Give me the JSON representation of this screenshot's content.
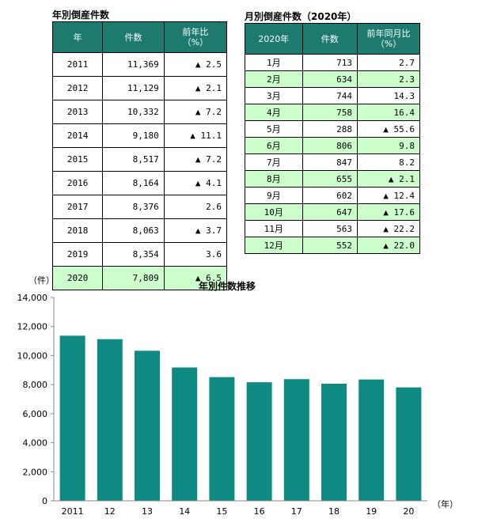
{
  "annual_table": {
    "title": "年別倒産件数",
    "headers": [
      "年",
      "件数",
      "前年比\n（%）"
    ],
    "rows": [
      {
        "year": "2011",
        "count": "11,369",
        "ratio": "▲ 2.5",
        "highlight": false
      },
      {
        "year": "2012",
        "count": "11,129",
        "ratio": "▲ 2.1",
        "highlight": false
      },
      {
        "year": "2013",
        "count": "10,332",
        "ratio": "▲ 7.2",
        "highlight": false
      },
      {
        "year": "2014",
        "count": "9,180",
        "ratio": "▲ 11.1",
        "highlight": false
      },
      {
        "year": "2015",
        "count": "8,517",
        "ratio": "▲ 7.2",
        "highlight": false
      },
      {
        "year": "2016",
        "count": "8,164",
        "ratio": "▲ 4.1",
        "highlight": false
      },
      {
        "year": "2017",
        "count": "8,376",
        "ratio": "2.6",
        "highlight": false
      },
      {
        "year": "2018",
        "count": "8,063",
        "ratio": "▲ 3.7",
        "highlight": false
      },
      {
        "year": "2019",
        "count": "8,354",
        "ratio": "3.6",
        "highlight": false
      },
      {
        "year": "2020",
        "count": "7,809",
        "ratio": "▲ 6.5",
        "highlight": true
      }
    ]
  },
  "monthly_table": {
    "title": "月別倒産件数（2020年）",
    "headers": [
      "2020年",
      "件数",
      "前年同月比\n（%）"
    ],
    "rows": [
      {
        "month": "1月",
        "count": "713",
        "ratio": "2.7",
        "highlight": false
      },
      {
        "month": "2月",
        "count": "634",
        "ratio": "2.3",
        "highlight": true
      },
      {
        "month": "3月",
        "count": "744",
        "ratio": "14.3",
        "highlight": false
      },
      {
        "month": "4月",
        "count": "758",
        "ratio": "16.4",
        "highlight": true
      },
      {
        "month": "5月",
        "count": "288",
        "ratio": "▲ 55.6",
        "highlight": false
      },
      {
        "month": "6月",
        "count": "806",
        "ratio": "9.8",
        "highlight": true
      },
      {
        "month": "7月",
        "count": "847",
        "ratio": "8.2",
        "highlight": false
      },
      {
        "month": "8月",
        "count": "655",
        "ratio": "▲ 2.1",
        "highlight": true
      },
      {
        "month": "9月",
        "count": "602",
        "ratio": "▲ 12.4",
        "highlight": false
      },
      {
        "month": "10月",
        "count": "647",
        "ratio": "▲ 17.6",
        "highlight": true
      },
      {
        "month": "11月",
        "count": "563",
        "ratio": "▲ 22.2",
        "highlight": false
      },
      {
        "month": "12月",
        "count": "552",
        "ratio": "▲ 22.0",
        "highlight": true
      }
    ]
  },
  "colors": {
    "header": "#1c7a6f",
    "highlight_row": "#ccffcc",
    "bar": "#0f8a82"
  },
  "chart_data": {
    "type": "bar",
    "title": "年別件数推移",
    "y_unit": "（件）",
    "x_unit": "（年）",
    "categories": [
      "2011",
      "12",
      "13",
      "14",
      "15",
      "16",
      "17",
      "18",
      "19",
      "20"
    ],
    "values": [
      11369,
      11129,
      10332,
      9180,
      8517,
      8164,
      8376,
      8063,
      8354,
      7809
    ],
    "ylim": [
      0,
      14000
    ],
    "yticks": [
      0,
      2000,
      4000,
      6000,
      8000,
      10000,
      12000,
      14000
    ],
    "ytick_labels": [
      "0",
      "2,000",
      "4,000",
      "6,000",
      "8,000",
      "10,000",
      "12,000",
      "14,000"
    ],
    "grid": false,
    "legend": "none"
  }
}
